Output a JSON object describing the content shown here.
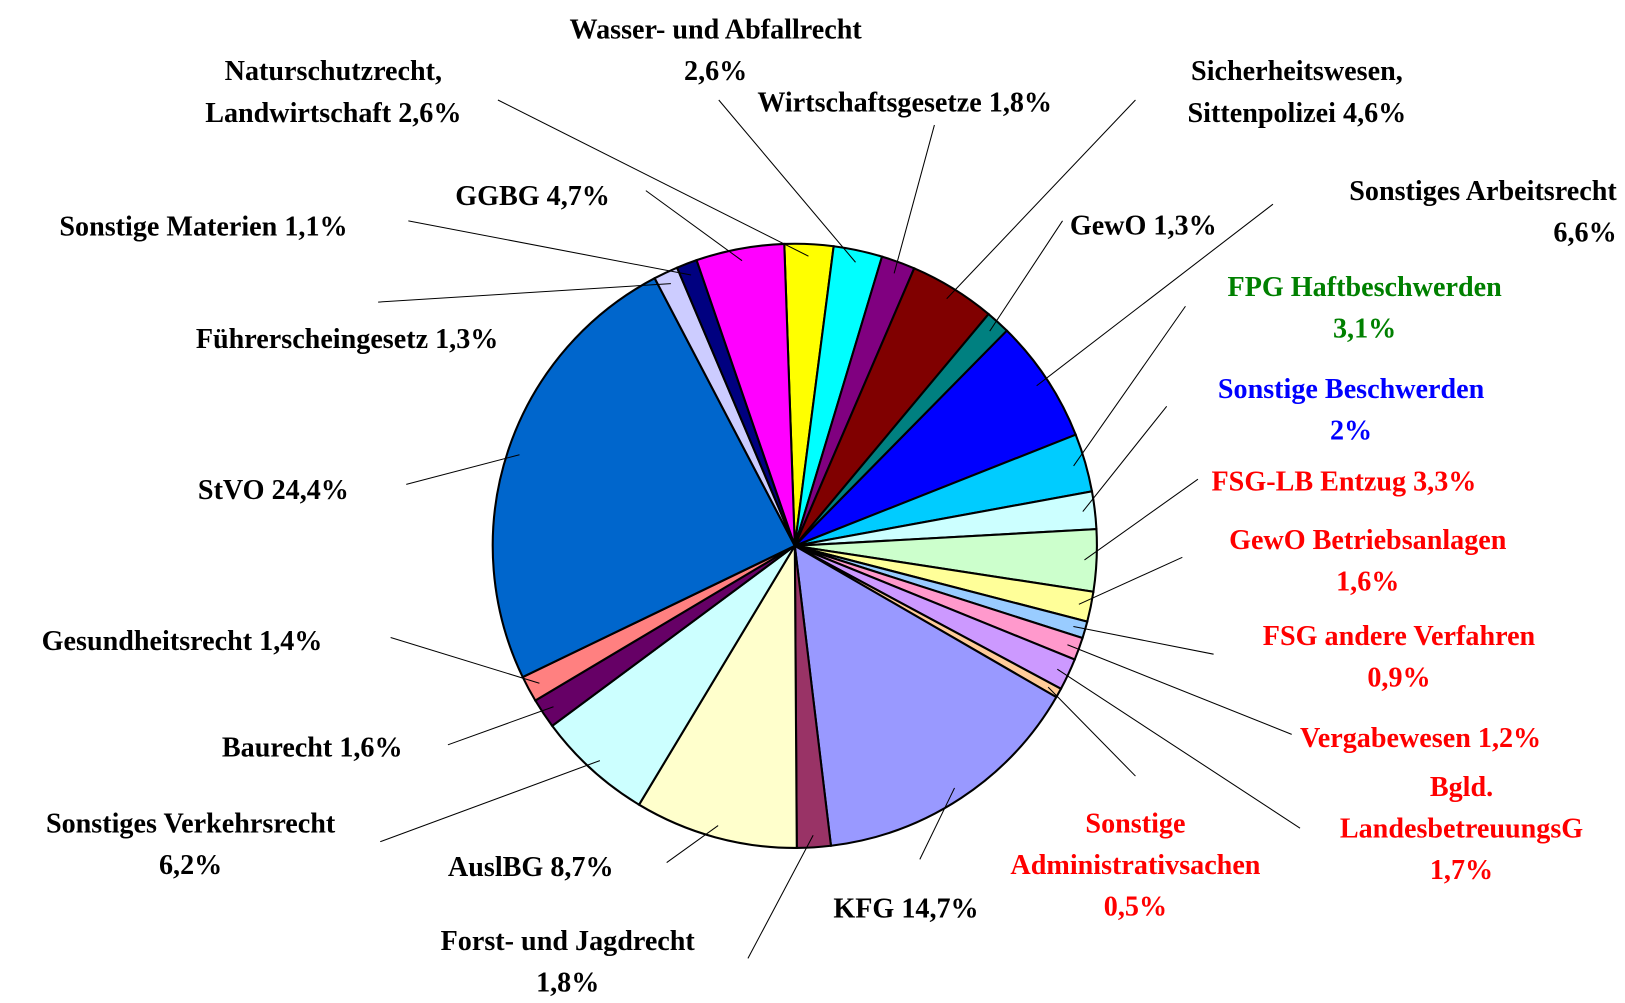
{
  "chart_data": {
    "type": "pie",
    "categories": [
      "Naturschutzrecht, Landwirtschaft",
      "Wasser- und Abfallrecht",
      "Wirtschaftsgesetze",
      "Sicherheitswesen, Sittenpolizei",
      "GewO",
      "Sonstiges Arbeitsrecht",
      "FPG Haftbeschwerden",
      "Sonstige Beschwerden",
      "FSG-LB Entzug",
      "GewO Betriebsanlagen",
      "FSG andere Verfahren",
      "Vergabewesen",
      "Bgld. LandesbetreuungsG",
      "Sonstige Administrativsachen",
      "KFG",
      "Forst- und Jagdrecht",
      "AuslBG",
      "Sonstiges Verkehrsrecht",
      "Baurecht",
      "Gesundheitsrecht",
      "StVO",
      "Führerscheingesetz",
      "Sonstige Materien",
      "GGBG"
    ],
    "values": [
      2.6,
      2.6,
      1.8,
      4.6,
      1.3,
      6.6,
      3.1,
      2,
      3.3,
      1.6,
      0.9,
      1.2,
      1.7,
      0.5,
      14.7,
      1.8,
      8.7,
      6.2,
      1.6,
      1.4,
      24.4,
      1.3,
      1.1,
      4.7
    ],
    "value_labels": [
      "2,6%",
      "2,6%",
      "1,8%",
      "4,6%",
      "1,3%",
      "6,6%",
      "3,1%",
      "2%",
      "3,3%",
      "1,6%",
      "0,9%",
      "1,2%",
      "1,7%",
      "0,5%",
      "14,7%",
      "1,8%",
      "8,7%",
      "6,2%",
      "1,6%",
      "1,4%",
      "24,4%",
      "1,3%",
      "1,1%",
      "4,7%"
    ],
    "colors": [
      "#ffff00",
      "#00ffff",
      "#800080",
      "#800000",
      "#008080",
      "#0000ff",
      "#00ccff",
      "#ccffff",
      "#ccffcc",
      "#ffff99",
      "#99ccff",
      "#ff99cc",
      "#cc99ff",
      "#ffcc99",
      "#9999ff",
      "#993366",
      "#ffffcc",
      "#ccffff",
      "#660066",
      "#ff8080",
      "#0066cc",
      "#ccccff",
      "#000080",
      "#ff00ff"
    ],
    "label_colors": [
      "#000000",
      "#000000",
      "#000000",
      "#000000",
      "#000000",
      "#000000",
      "#008000",
      "#0000ff",
      "#ff0000",
      "#ff0000",
      "#ff0000",
      "#ff0000",
      "#ff0000",
      "#ff0000",
      "#000000",
      "#000000",
      "#000000",
      "#000000",
      "#000000",
      "#000000",
      "#000000",
      "#000000",
      "#000000",
      "#000000"
    ]
  }
}
